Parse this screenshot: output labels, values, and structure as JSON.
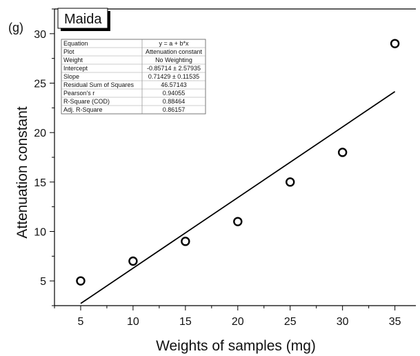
{
  "chart_data": {
    "type": "scatter",
    "panel_label": "(g)",
    "legend_label": "Maida",
    "xlabel": "Weights of samples (mg)",
    "ylabel": "Attenuation constant",
    "xlim": [
      2.5,
      37
    ],
    "ylim": [
      2.5,
      32.5
    ],
    "x_ticks": [
      5,
      10,
      15,
      20,
      25,
      30,
      35
    ],
    "y_ticks": [
      5,
      10,
      15,
      20,
      25,
      30
    ],
    "series": [
      {
        "x": [
          5,
          10,
          15,
          20,
          25,
          30,
          35
        ],
        "y": [
          5,
          7,
          9,
          11,
          15,
          18,
          29
        ]
      }
    ],
    "fit": {
      "intercept": -0.85714,
      "slope": 0.71429,
      "x_range": [
        5,
        35
      ]
    },
    "fit_stats": [
      {
        "label": "Equation",
        "value": "y = a + b*x"
      },
      {
        "label": "Plot",
        "value": "Attenuation constant"
      },
      {
        "label": "Weight",
        "value": "No Weighting"
      },
      {
        "label": "Intercept",
        "value": "-0.85714 ± 2.57935"
      },
      {
        "label": "Slope",
        "value": "0.71429 ± 0.11535"
      },
      {
        "label": "Residual Sum of Squares",
        "value": "46.57143"
      },
      {
        "label": "Pearson's r",
        "value": "0.94055"
      },
      {
        "label": "R-Square (COD)",
        "value": "0.88464"
      },
      {
        "label": "Adj. R-Square",
        "value": "0.86157"
      }
    ],
    "grid": false
  }
}
